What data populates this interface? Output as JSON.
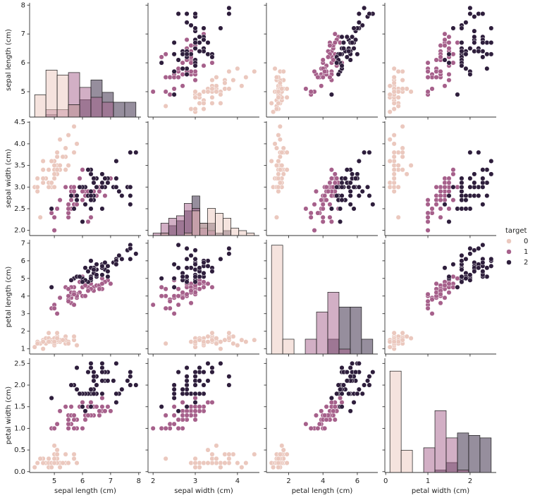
{
  "chart_data": {
    "type": "pairplot",
    "legend_title": "target",
    "legend_position": "right",
    "count_lim": [
      0,
      46.2
    ],
    "variables": [
      {
        "label": "sepal length (cm)",
        "lim": [
          4.12,
          8.08
        ],
        "xticks": [
          5,
          6,
          7,
          8
        ],
        "yticks": [
          5,
          6,
          7,
          8
        ],
        "bins": [
          4.3,
          4.7,
          5.1,
          5.5,
          5.9,
          6.3,
          6.7,
          7.1,
          7.5,
          7.9
        ]
      },
      {
        "label": "sepal width (cm)",
        "lim": [
          1.88,
          4.52
        ],
        "xticks": [
          2,
          3,
          4
        ],
        "yticks": [
          {
            "value": 2,
            "label": "2.0"
          },
          2.5,
          {
            "value": 3,
            "label": "3.0"
          },
          3.5,
          {
            "value": 4,
            "label": "4.0"
          },
          4.5
        ],
        "bins": [
          2.0,
          2.1846,
          2.3692,
          2.5538,
          2.7385,
          2.9231,
          3.1077,
          3.2923,
          3.4769,
          3.6615,
          3.8462,
          4.0308,
          4.2154,
          4.4
        ]
      },
      {
        "label": "petal length (cm)",
        "lim": [
          0.705,
          7.195
        ],
        "xticks": [
          2,
          4,
          6
        ],
        "yticks": [
          1,
          2,
          3,
          4,
          5,
          6,
          7
        ],
        "bins": [
          1.0,
          1.6556,
          2.3111,
          2.9667,
          3.6222,
          4.2778,
          4.9333,
          5.5889,
          6.2444,
          6.9
        ]
      },
      {
        "label": "petal width (cm)",
        "lim": [
          -0.02,
          2.62
        ],
        "xticks": [
          0,
          1,
          2
        ],
        "yticks": [
          {
            "value": 0,
            "label": "0.0"
          },
          0.5,
          {
            "value": 1,
            "label": "1.0"
          },
          1.5,
          {
            "value": 2,
            "label": "2.0"
          },
          2.5
        ],
        "bins": [
          0.1,
          0.3667,
          0.6333,
          0.9,
          1.1667,
          1.4333,
          1.7,
          1.9667,
          2.2333,
          2.5
        ]
      }
    ],
    "series": [
      {
        "name": "0",
        "color": "#ebc8be",
        "columns": [
          [
            5.1,
            4.9,
            4.7,
            4.6,
            5.0,
            5.4,
            4.6,
            5.0,
            4.4,
            4.9,
            5.4,
            4.8,
            4.8,
            4.3,
            5.8,
            5.7,
            5.4,
            5.1,
            5.7,
            5.1,
            5.4,
            5.1,
            4.6,
            5.1,
            4.8,
            5.0,
            5.0,
            5.2,
            5.2,
            4.7,
            4.8,
            5.4,
            5.2,
            5.5,
            4.9,
            5.0,
            5.5,
            4.9,
            4.4,
            5.1,
            5.0,
            4.5,
            4.4,
            5.0,
            5.1,
            4.8,
            5.1,
            4.6,
            5.3,
            5.0
          ],
          [
            3.5,
            3.0,
            3.2,
            3.1,
            3.6,
            3.9,
            3.4,
            3.4,
            2.9,
            3.1,
            3.7,
            3.4,
            3.0,
            3.0,
            4.0,
            4.4,
            3.9,
            3.5,
            3.8,
            3.8,
            3.4,
            3.7,
            3.6,
            3.3,
            3.4,
            3.0,
            3.4,
            3.5,
            3.4,
            3.2,
            3.1,
            3.4,
            4.1,
            4.2,
            3.1,
            3.2,
            3.5,
            3.6,
            3.0,
            3.4,
            3.5,
            2.3,
            3.2,
            3.5,
            3.8,
            3.0,
            3.8,
            3.2,
            3.7,
            3.3
          ],
          [
            1.4,
            1.4,
            1.3,
            1.5,
            1.4,
            1.7,
            1.4,
            1.5,
            1.4,
            1.5,
            1.5,
            1.6,
            1.4,
            1.1,
            1.2,
            1.5,
            1.3,
            1.4,
            1.7,
            1.5,
            1.7,
            1.5,
            1.0,
            1.7,
            1.9,
            1.6,
            1.6,
            1.5,
            1.4,
            1.6,
            1.6,
            1.5,
            1.5,
            1.4,
            1.5,
            1.2,
            1.3,
            1.4,
            1.3,
            1.5,
            1.3,
            1.3,
            1.3,
            1.6,
            1.9,
            1.4,
            1.6,
            1.4,
            1.5,
            1.4
          ],
          [
            0.2,
            0.2,
            0.2,
            0.2,
            0.2,
            0.4,
            0.3,
            0.2,
            0.2,
            0.1,
            0.2,
            0.2,
            0.1,
            0.1,
            0.2,
            0.4,
            0.4,
            0.3,
            0.3,
            0.3,
            0.2,
            0.4,
            0.2,
            0.5,
            0.2,
            0.2,
            0.4,
            0.2,
            0.2,
            0.2,
            0.2,
            0.4,
            0.1,
            0.2,
            0.2,
            0.2,
            0.2,
            0.1,
            0.2,
            0.2,
            0.3,
            0.3,
            0.2,
            0.6,
            0.4,
            0.3,
            0.2,
            0.2,
            0.2,
            0.2
          ]
        ],
        "counts": [
          [
            9,
            19,
            17,
            5,
            0,
            0,
            0,
            0,
            0
          ],
          [
            0,
            1,
            0,
            0,
            1,
            10,
            5,
            11,
            9,
            7,
            3,
            2,
            1
          ],
          [
            44,
            6,
            0,
            0,
            0,
            0,
            0,
            0,
            0
          ],
          [
            41,
            9,
            0,
            0,
            0,
            0,
            0,
            0,
            0
          ]
        ]
      },
      {
        "name": "1",
        "color": "#a6608b",
        "columns": [
          [
            7.0,
            6.4,
            6.9,
            5.5,
            6.5,
            5.7,
            6.3,
            4.9,
            6.6,
            5.2,
            5.0,
            5.9,
            6.0,
            6.1,
            5.6,
            6.7,
            5.6,
            5.8,
            6.2,
            5.6,
            5.9,
            6.1,
            6.3,
            6.1,
            6.4,
            6.6,
            6.8,
            6.7,
            6.0,
            5.7,
            5.5,
            5.5,
            5.8,
            6.0,
            5.4,
            6.0,
            6.7,
            6.3,
            5.6,
            5.5,
            5.5,
            6.1,
            5.8,
            5.0,
            5.6,
            5.7,
            5.7,
            6.2,
            5.1,
            5.7
          ],
          [
            3.2,
            3.2,
            3.1,
            2.3,
            2.8,
            2.8,
            3.3,
            2.4,
            2.9,
            2.7,
            2.0,
            3.0,
            2.2,
            2.9,
            2.9,
            3.1,
            3.0,
            2.7,
            2.2,
            2.5,
            3.2,
            2.8,
            2.5,
            2.8,
            2.9,
            3.0,
            2.8,
            3.0,
            2.9,
            2.6,
            2.4,
            2.4,
            2.7,
            2.7,
            3.0,
            3.4,
            3.1,
            2.3,
            3.0,
            2.5,
            2.6,
            3.0,
            2.6,
            2.3,
            2.7,
            3.0,
            2.9,
            2.9,
            2.5,
            2.8
          ],
          [
            4.7,
            4.5,
            4.9,
            4.0,
            4.6,
            4.5,
            4.7,
            3.3,
            4.6,
            3.9,
            3.5,
            4.2,
            4.0,
            4.7,
            3.6,
            4.4,
            4.5,
            4.1,
            4.5,
            3.9,
            4.8,
            4.0,
            4.9,
            4.7,
            4.3,
            4.4,
            4.8,
            5.0,
            4.5,
            3.5,
            3.8,
            3.7,
            3.9,
            5.1,
            4.5,
            4.5,
            4.7,
            4.4,
            4.1,
            4.0,
            4.4,
            4.6,
            4.0,
            3.3,
            4.2,
            4.2,
            4.2,
            4.3,
            3.0,
            4.1
          ],
          [
            1.4,
            1.5,
            1.5,
            1.3,
            1.5,
            1.3,
            1.6,
            1.0,
            1.3,
            1.4,
            1.0,
            1.5,
            1.0,
            1.4,
            1.3,
            1.4,
            1.5,
            1.0,
            1.5,
            1.1,
            1.8,
            1.3,
            1.5,
            1.2,
            1.3,
            1.4,
            1.4,
            1.7,
            1.5,
            1.0,
            1.1,
            1.0,
            1.2,
            1.6,
            1.5,
            1.6,
            1.5,
            1.3,
            1.3,
            1.3,
            1.2,
            1.4,
            1.2,
            1.0,
            1.3,
            1.2,
            1.3,
            1.3,
            1.1,
            1.3
          ]
        ],
        "counts": [
          [
            0,
            3,
            3,
            18,
            12,
            8,
            6,
            0,
            0
          ],
          [
            1,
            5,
            7,
            8,
            13,
            11,
            3,
            2,
            0,
            0,
            0,
            0,
            0
          ],
          [
            0,
            0,
            0,
            6,
            17,
            25,
            2,
            0,
            0
          ],
          [
            0,
            0,
            0,
            10,
            25,
            14,
            1,
            0,
            0
          ]
        ]
      },
      {
        "name": "2",
        "color": "#2e1e3c",
        "columns": [
          [
            6.3,
            5.8,
            7.1,
            6.3,
            6.5,
            7.6,
            4.9,
            7.3,
            6.7,
            7.2,
            6.5,
            6.4,
            6.8,
            5.7,
            5.8,
            6.4,
            6.5,
            7.7,
            7.7,
            6.0,
            6.9,
            5.6,
            7.7,
            6.3,
            6.7,
            7.2,
            6.2,
            6.1,
            6.4,
            7.2,
            7.4,
            7.9,
            6.4,
            6.3,
            6.1,
            7.7,
            6.3,
            6.4,
            6.0,
            6.9,
            6.7,
            6.9,
            5.8,
            6.8,
            6.7,
            6.7,
            6.3,
            6.5,
            6.2,
            5.9
          ],
          [
            3.3,
            2.7,
            3.0,
            2.9,
            3.0,
            3.0,
            2.5,
            2.9,
            2.5,
            3.6,
            3.2,
            2.7,
            3.0,
            2.5,
            2.8,
            3.2,
            3.0,
            3.8,
            2.6,
            2.2,
            3.2,
            2.8,
            2.8,
            2.7,
            3.3,
            3.2,
            2.8,
            3.0,
            2.8,
            3.0,
            2.8,
            3.8,
            2.8,
            2.8,
            2.6,
            3.0,
            3.4,
            3.1,
            3.0,
            3.1,
            3.1,
            3.1,
            2.7,
            3.2,
            3.3,
            3.0,
            2.5,
            3.0,
            3.4,
            3.0
          ],
          [
            6.0,
            5.1,
            5.9,
            5.6,
            5.8,
            6.6,
            4.5,
            6.3,
            5.8,
            6.1,
            5.1,
            5.3,
            5.5,
            5.0,
            5.1,
            5.3,
            5.5,
            6.7,
            6.9,
            5.0,
            5.7,
            4.9,
            6.7,
            4.9,
            5.7,
            6.0,
            4.8,
            4.9,
            5.6,
            5.8,
            6.1,
            6.4,
            5.6,
            5.1,
            5.6,
            6.1,
            5.6,
            5.5,
            4.8,
            5.4,
            5.6,
            5.1,
            5.1,
            5.9,
            5.7,
            5.2,
            5.0,
            5.2,
            5.4,
            5.1
          ],
          [
            2.5,
            1.9,
            2.1,
            1.8,
            2.2,
            2.1,
            1.7,
            1.8,
            1.8,
            2.5,
            2.0,
            1.9,
            2.1,
            2.0,
            2.4,
            2.3,
            1.8,
            2.2,
            2.3,
            1.5,
            2.3,
            2.0,
            2.0,
            1.8,
            2.1,
            1.8,
            1.8,
            1.8,
            2.1,
            1.6,
            1.9,
            2.0,
            2.2,
            1.5,
            1.4,
            2.3,
            2.4,
            1.8,
            1.8,
            2.1,
            2.4,
            2.3,
            1.9,
            2.3,
            2.5,
            2.3,
            1.9,
            2.0,
            2.3,
            1.8
          ]
        ],
        "counts": [
          [
            0,
            1,
            0,
            5,
            7,
            15,
            10,
            6,
            6
          ],
          [
            0,
            1,
            4,
            6,
            10,
            16,
            5,
            5,
            1,
            2,
            0,
            0,
            0
          ],
          [
            0,
            0,
            0,
            0,
            0,
            6,
            19,
            19,
            6
          ],
          [
            0,
            0,
            0,
            0,
            1,
            4,
            16,
            15,
            14
          ]
        ]
      }
    ]
  }
}
